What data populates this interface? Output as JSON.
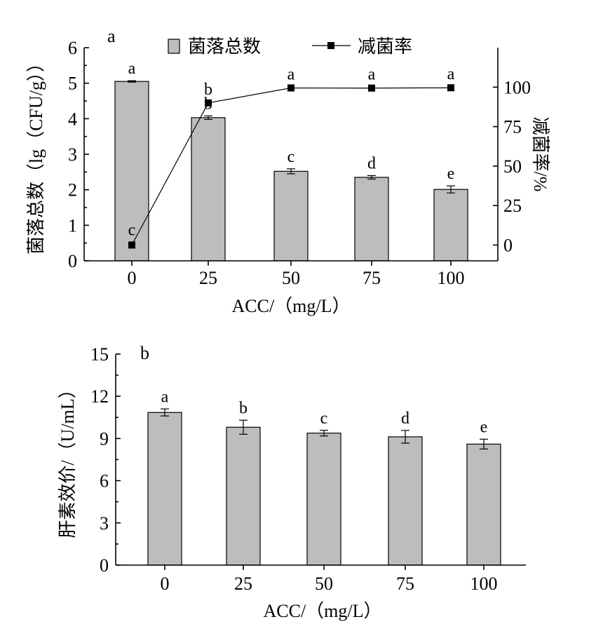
{
  "chart_data": [
    {
      "type": "bar",
      "panel_label": "a",
      "categories": [
        "0",
        "25",
        "50",
        "75",
        "100"
      ],
      "xlabel": "ACC/（mg/L）",
      "ylabel": "菌落总数（lg（CFU/g））",
      "y2label": "减菌率/%",
      "ylim": [
        0,
        6
      ],
      "y2lim": [
        -10,
        125
      ],
      "yticks": [
        "0",
        "1",
        "2",
        "3",
        "4",
        "5",
        "6"
      ],
      "y2ticks": [
        "0",
        "25",
        "50",
        "75",
        "100"
      ],
      "legend": [
        "菌落总数",
        "减菌率"
      ],
      "legend_position": "top",
      "series": [
        {
          "name": "菌落总数",
          "type": "bar",
          "axis": "left",
          "color": "#bdbdbd",
          "values": [
            5.05,
            4.03,
            2.52,
            2.35,
            2.01
          ],
          "errors": [
            0.02,
            0.05,
            0.07,
            0.05,
            0.1
          ],
          "labels": [
            "a",
            "b",
            "c",
            "d",
            "e"
          ]
        },
        {
          "name": "减菌率",
          "type": "line",
          "axis": "right",
          "color": "#000000",
          "values": [
            0,
            90,
            99.5,
            99.4,
            99.6
          ],
          "errors": [
            1.5,
            1,
            0.3,
            0.3,
            0.3
          ],
          "labels": [
            "c",
            "b",
            "a",
            "a",
            "a"
          ]
        }
      ]
    },
    {
      "type": "bar",
      "panel_label": "b",
      "categories": [
        "0",
        "25",
        "50",
        "75",
        "100"
      ],
      "xlabel": "ACC/（mg/L）",
      "ylabel": "肝素效价/（U/mL）",
      "ylim": [
        0,
        15
      ],
      "yticks": [
        "0",
        "3",
        "6",
        "9",
        "12",
        "15"
      ],
      "series": [
        {
          "type": "bar",
          "color": "#bdbdbd",
          "values": [
            10.85,
            9.8,
            9.38,
            9.12,
            8.6
          ],
          "errors": [
            0.25,
            0.5,
            0.2,
            0.45,
            0.35
          ],
          "labels": [
            "a",
            "b",
            "c",
            "d",
            "e"
          ]
        }
      ]
    }
  ]
}
